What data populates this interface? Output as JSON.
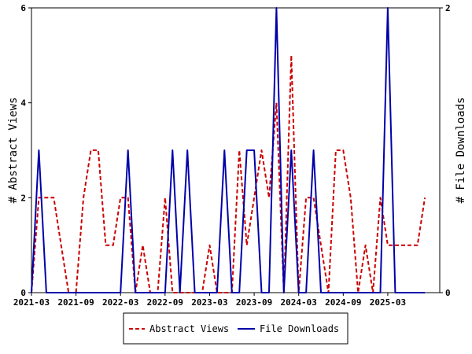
{
  "chart_data": {
    "type": "line",
    "title": "",
    "x_tick_labels": [
      "2021-03",
      "2021-09",
      "2022-03",
      "2022-09",
      "2023-03",
      "2023-09",
      "2024-03",
      "2024-09",
      "2025-03"
    ],
    "x_range": [
      "2021-03",
      "2025-10"
    ],
    "left_axis": {
      "label": "# Abstract Views",
      "ylim": [
        0,
        6
      ],
      "ticks": [
        0,
        2,
        4,
        6
      ]
    },
    "right_axis": {
      "label": "# File Downloads",
      "ylim": [
        0,
        2
      ],
      "ticks": [
        0,
        2
      ]
    },
    "legend_position": "bottom",
    "grid": false,
    "series": [
      {
        "name": "Abstract Views",
        "axis": "left",
        "color": "#cc0000",
        "style": "dashed",
        "points": [
          [
            "2021-03",
            0
          ],
          [
            "2021-04",
            2
          ],
          [
            "2021-05",
            2
          ],
          [
            "2021-06",
            2
          ],
          [
            "2021-07",
            1
          ],
          [
            "2021-08",
            0
          ],
          [
            "2021-09",
            0
          ],
          [
            "2021-10",
            2
          ],
          [
            "2021-11",
            3
          ],
          [
            "2021-12",
            3
          ],
          [
            "2022-01",
            1
          ],
          [
            "2022-02",
            1
          ],
          [
            "2022-03",
            2
          ],
          [
            "2022-04",
            2
          ],
          [
            "2022-05",
            0
          ],
          [
            "2022-06",
            1
          ],
          [
            "2022-07",
            0
          ],
          [
            "2022-08",
            0
          ],
          [
            "2022-09",
            2
          ],
          [
            "2022-10",
            0
          ],
          [
            "2022-11",
            0
          ],
          [
            "2022-12",
            0
          ],
          [
            "2023-01",
            0
          ],
          [
            "2023-02",
            0
          ],
          [
            "2023-03",
            1
          ],
          [
            "2023-04",
            0
          ],
          [
            "2023-05",
            0
          ],
          [
            "2023-06",
            0
          ],
          [
            "2023-07",
            3
          ],
          [
            "2023-08",
            1
          ],
          [
            "2023-09",
            2
          ],
          [
            "2023-10",
            3
          ],
          [
            "2023-11",
            2
          ],
          [
            "2023-12",
            4
          ],
          [
            "2024-01",
            0
          ],
          [
            "2024-02",
            5
          ],
          [
            "2024-03",
            0
          ],
          [
            "2024-04",
            2
          ],
          [
            "2024-05",
            2
          ],
          [
            "2024-06",
            1
          ],
          [
            "2024-07",
            0
          ],
          [
            "2024-08",
            3
          ],
          [
            "2024-09",
            3
          ],
          [
            "2024-10",
            2
          ],
          [
            "2024-11",
            0
          ],
          [
            "2024-12",
            1
          ],
          [
            "2025-01",
            0
          ],
          [
            "2025-02",
            2
          ],
          [
            "2025-03",
            1
          ],
          [
            "2025-04",
            1
          ],
          [
            "2025-05",
            1
          ],
          [
            "2025-06",
            1
          ],
          [
            "2025-07",
            1
          ],
          [
            "2025-08",
            2
          ]
        ]
      },
      {
        "name": "File Downloads",
        "axis": "right",
        "color": "#0000aa",
        "style": "solid",
        "points": [
          [
            "2021-03",
            0
          ],
          [
            "2021-04",
            1
          ],
          [
            "2021-05",
            0
          ],
          [
            "2021-06",
            0
          ],
          [
            "2021-07",
            0
          ],
          [
            "2021-08",
            0
          ],
          [
            "2021-09",
            0
          ],
          [
            "2021-10",
            0
          ],
          [
            "2021-11",
            0
          ],
          [
            "2021-12",
            0
          ],
          [
            "2022-01",
            0
          ],
          [
            "2022-02",
            0
          ],
          [
            "2022-03",
            0
          ],
          [
            "2022-04",
            1
          ],
          [
            "2022-05",
            0
          ],
          [
            "2022-06",
            0
          ],
          [
            "2022-07",
            0
          ],
          [
            "2022-08",
            0
          ],
          [
            "2022-09",
            0
          ],
          [
            "2022-10",
            1
          ],
          [
            "2022-11",
            0
          ],
          [
            "2022-12",
            1
          ],
          [
            "2023-01",
            0
          ],
          [
            "2023-02",
            0
          ],
          [
            "2023-03",
            0
          ],
          [
            "2023-04",
            0
          ],
          [
            "2023-05",
            1
          ],
          [
            "2023-06",
            0
          ],
          [
            "2023-07",
            0
          ],
          [
            "2023-08",
            1
          ],
          [
            "2023-09",
            1
          ],
          [
            "2023-10",
            0
          ],
          [
            "2023-11",
            0
          ],
          [
            "2023-12",
            2
          ],
          [
            "2024-01",
            0
          ],
          [
            "2024-02",
            1
          ],
          [
            "2024-03",
            0
          ],
          [
            "2024-04",
            0
          ],
          [
            "2024-05",
            1
          ],
          [
            "2024-06",
            0
          ],
          [
            "2024-07",
            0
          ],
          [
            "2024-08",
            0
          ],
          [
            "2024-09",
            0
          ],
          [
            "2024-10",
            0
          ],
          [
            "2024-11",
            0
          ],
          [
            "2024-12",
            0
          ],
          [
            "2025-01",
            0
          ],
          [
            "2025-02",
            0
          ],
          [
            "2025-03",
            2
          ],
          [
            "2025-04",
            0
          ],
          [
            "2025-05",
            0
          ],
          [
            "2025-06",
            0
          ],
          [
            "2025-07",
            0
          ],
          [
            "2025-08",
            0
          ]
        ]
      }
    ]
  }
}
